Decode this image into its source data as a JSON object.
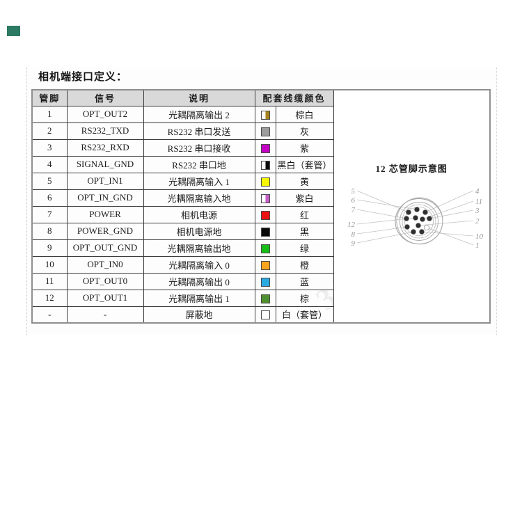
{
  "page": {
    "title": "相机端接口定义：",
    "watermark_text": "33625 3",
    "corner_mark_color": "#2c7a63"
  },
  "table": {
    "headers": {
      "pin": "管脚",
      "signal": "信号",
      "description": "说明",
      "cable_color": "配套线缆颜色"
    },
    "rows": [
      {
        "pin": "1",
        "signal": "OPT_OUT2",
        "description": "光耦隔离输出 2",
        "swatch": {
          "type": "split",
          "color": "#a5821b"
        },
        "color_name": "棕白"
      },
      {
        "pin": "2",
        "signal": "RS232_TXD",
        "description": "RS232 串口发送",
        "swatch": {
          "type": "solid",
          "color": "#9c9c9c"
        },
        "color_name": "灰"
      },
      {
        "pin": "3",
        "signal": "RS232_RXD",
        "description": "RS232 串口接收",
        "swatch": {
          "type": "solid",
          "color": "#c400c4"
        },
        "color_name": "紫"
      },
      {
        "pin": "4",
        "signal": "SIGNAL_GND",
        "description": "RS232 串口地",
        "swatch": {
          "type": "split",
          "color": "#0a0a0a"
        },
        "color_name": "黑白（套管）"
      },
      {
        "pin": "5",
        "signal": "OPT_IN1",
        "description": "光耦隔离输入 1",
        "swatch": {
          "type": "solid",
          "color": "#f6f600"
        },
        "color_name": "黄"
      },
      {
        "pin": "6",
        "signal": "OPT_IN_GND",
        "description": "光耦隔离输入地",
        "swatch": {
          "type": "split",
          "color": "#c45fc4"
        },
        "color_name": "紫白"
      },
      {
        "pin": "7",
        "signal": "POWER",
        "description": "相机电源",
        "swatch": {
          "type": "solid",
          "color": "#ee1111"
        },
        "color_name": "红"
      },
      {
        "pin": "8",
        "signal": "POWER_GND",
        "description": "相机电源地",
        "swatch": {
          "type": "solid",
          "color": "#0a0a0a"
        },
        "color_name": "黑"
      },
      {
        "pin": "9",
        "signal": "OPT_OUT_GND",
        "description": "光耦隔离输出地",
        "swatch": {
          "type": "solid",
          "color": "#17bd17"
        },
        "color_name": "绿"
      },
      {
        "pin": "10",
        "signal": "OPT_IN0",
        "description": "光耦隔离输入 0",
        "swatch": {
          "type": "solid",
          "color": "#f8a51d"
        },
        "color_name": "橙"
      },
      {
        "pin": "11",
        "signal": "OPT_OUT0",
        "description": "光耦隔离输出 0",
        "swatch": {
          "type": "solid",
          "color": "#2baae2"
        },
        "color_name": "蓝"
      },
      {
        "pin": "12",
        "signal": "OPT_OUT1",
        "description": "光耦隔离输出 1",
        "swatch": {
          "type": "solid",
          "color": "#4f9130"
        },
        "color_name": "棕"
      },
      {
        "pin": "-",
        "signal": "-",
        "description": "屏蔽地",
        "swatch": {
          "type": "outline",
          "color": "#ffffff"
        },
        "color_name": "白（套管）"
      }
    ]
  },
  "diagram": {
    "title": "12 芯管脚示意图",
    "left_labels": [
      "5",
      "6",
      "7",
      "12",
      "8",
      "9"
    ],
    "right_labels": [
      "4",
      "11",
      "3",
      "2",
      "10",
      "1"
    ]
  }
}
